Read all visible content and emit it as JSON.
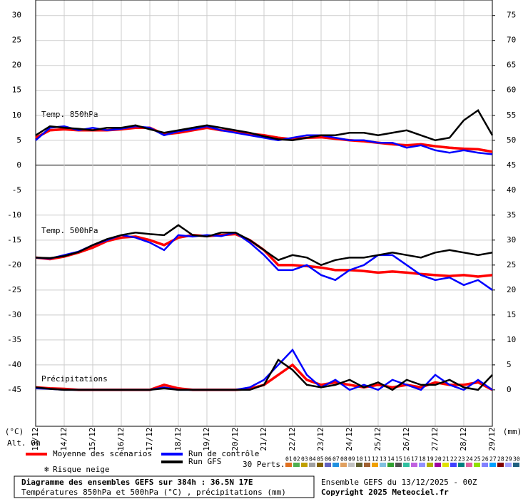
{
  "chart_data": {
    "type": "line",
    "panel_labels": {
      "t850": "Temp. 850hPa",
      "t500": "Temp. 500hPa",
      "precip": "Précipitations"
    },
    "ylabel": "(°C)",
    "y2label": "(mm)",
    "altitude": "Alt. 0m",
    "x": [
      0,
      0.5,
      1,
      1.5,
      2,
      2.5,
      3,
      3.5,
      4,
      4.5,
      5,
      5.5,
      6,
      6.5,
      7,
      7.5,
      8,
      8.5,
      9,
      9.5,
      10,
      10.5,
      11,
      11.5,
      12,
      12.5,
      13,
      13.5,
      14,
      14.5,
      15,
      15.5,
      16
    ],
    "xlim": [
      0,
      16
    ],
    "xticks": [
      {
        "value": 0,
        "label": "13/12"
      },
      {
        "value": 1,
        "label": "14/12"
      },
      {
        "value": 2,
        "label": "15/12"
      },
      {
        "value": 3,
        "label": "16/12"
      },
      {
        "value": 4,
        "label": "17/12"
      },
      {
        "value": 5,
        "label": "18/12"
      },
      {
        "value": 6,
        "label": "19/12"
      },
      {
        "value": 7,
        "label": "20/12"
      },
      {
        "value": 8,
        "label": "21/12"
      },
      {
        "value": 9,
        "label": "22/12"
      },
      {
        "value": 10,
        "label": "23/12"
      },
      {
        "value": 11,
        "label": "24/12"
      },
      {
        "value": 12,
        "label": "25/12"
      },
      {
        "value": 13,
        "label": "26/12"
      },
      {
        "value": 14,
        "label": "27/12"
      },
      {
        "value": 15,
        "label": "28/12"
      },
      {
        "value": 16,
        "label": "29/12"
      }
    ],
    "ylim": [
      -52.3,
      33.1
    ],
    "yticks": [
      30,
      25,
      20,
      15,
      10,
      5,
      0,
      -5,
      -10,
      -15,
      -20,
      -25,
      -30,
      -35,
      -40,
      -45
    ],
    "y2lim": [
      -7.3,
      78.1
    ],
    "y2ticks": [
      75,
      70,
      65,
      60,
      55,
      50,
      45,
      40,
      35,
      30,
      25,
      20,
      15,
      10,
      5,
      0
    ],
    "grid": true,
    "series": [
      {
        "name": "Moyenne des scénarios",
        "color": "#ff0000",
        "t850": [
          5.5,
          7,
          7.2,
          7,
          7,
          7,
          7.2,
          7.5,
          7.5,
          6.2,
          6.5,
          7,
          7.5,
          7,
          6.8,
          6.3,
          6,
          5.5,
          5.2,
          5.5,
          5.6,
          5.3,
          5,
          4.8,
          4.5,
          4.2,
          4,
          4.2,
          3.8,
          3.5,
          3.3,
          3.2,
          2.7
        ],
        "t500": [
          -18.5,
          -18.8,
          -18.3,
          -17.5,
          -16.5,
          -15.2,
          -14.5,
          -14.3,
          -15,
          -16,
          -14.5,
          -14,
          -14.2,
          -14,
          -13.8,
          -15,
          -17,
          -20,
          -20,
          -20.2,
          -20.5,
          -21,
          -21,
          -21.2,
          -21.5,
          -21.3,
          -21.5,
          -21.8,
          -22,
          -22.2,
          -22,
          -22.3,
          -22
        ],
        "precip": [
          0.5,
          0.3,
          0.2,
          0,
          0,
          0,
          0,
          0,
          0,
          1,
          0.3,
          0,
          0,
          0,
          0,
          0.2,
          1,
          3,
          5,
          2,
          1,
          1.5,
          1,
          0.5,
          1,
          0.5,
          1,
          0.5,
          1.5,
          1,
          1,
          1.5,
          0
        ]
      },
      {
        "name": "Run de contrôle",
        "color": "#0000ff",
        "t850": [
          5,
          7.5,
          7.8,
          7,
          7.5,
          7,
          7.3,
          7.8,
          7.5,
          6,
          6.8,
          7.2,
          7.8,
          7,
          6.5,
          6,
          5.5,
          5,
          5.5,
          6,
          6,
          5.5,
          5,
          5,
          4.5,
          4.5,
          3.5,
          4,
          3,
          2.5,
          3,
          2.5,
          2.2
        ],
        "t500": [
          -18.5,
          -18.7,
          -18,
          -17.3,
          -16,
          -15,
          -14,
          -14.5,
          -15.5,
          -17,
          -14,
          -14.3,
          -14,
          -14.2,
          -13.5,
          -15.5,
          -18,
          -21,
          -21,
          -20,
          -22,
          -23,
          -21,
          -20,
          -18,
          -18,
          -20,
          -22,
          -23,
          -22.5,
          -24,
          -23,
          -25
        ],
        "precip": [
          0.3,
          0.2,
          0,
          0,
          0,
          0,
          0,
          0,
          0,
          0.5,
          0,
          0,
          0,
          0,
          0,
          0.5,
          2,
          5,
          8,
          3,
          0.5,
          2,
          0,
          1,
          0,
          2,
          1,
          0,
          3,
          1,
          0,
          2,
          0
        ]
      },
      {
        "name": "Run GFS",
        "color": "#000000",
        "t850": [
          6,
          7.8,
          7.5,
          7.3,
          7,
          7.5,
          7.5,
          8,
          7.2,
          6.5,
          7,
          7.5,
          8,
          7.5,
          7,
          6.5,
          5.8,
          5.2,
          5,
          5.5,
          6,
          6,
          6.5,
          6.5,
          6,
          6.5,
          7,
          6,
          5,
          5.5,
          9,
          11,
          6
        ],
        "t500": [
          -18.5,
          -18.6,
          -18.2,
          -17.4,
          -16,
          -14.8,
          -14,
          -13.5,
          -13.8,
          -14,
          -12,
          -14,
          -14.3,
          -13.5,
          -13.5,
          -15,
          -17,
          -19,
          -18,
          -18.5,
          -20,
          -19,
          -18.5,
          -18.5,
          -18,
          -17.5,
          -18,
          -18.5,
          -17.5,
          -17,
          -17.5,
          -18,
          -17.5
        ],
        "precip": [
          0.5,
          0.2,
          0,
          0,
          0,
          0,
          0,
          0,
          0,
          0.3,
          0,
          0,
          0,
          0,
          0,
          0,
          1,
          6,
          4,
          1,
          0.5,
          1,
          2,
          0.5,
          1.5,
          0,
          2,
          1,
          1,
          2,
          0.5,
          0,
          3
        ]
      }
    ],
    "snow_label": "Risque neige",
    "perts_label": "30 Perts.",
    "perts": [
      {
        "label": "01",
        "color": "#e07020"
      },
      {
        "label": "02",
        "color": "#50b050"
      },
      {
        "label": "03",
        "color": "#c0a000"
      },
      {
        "label": "04",
        "color": "#a0a0a0"
      },
      {
        "label": "05",
        "color": "#806000"
      },
      {
        "label": "06",
        "color": "#6060c0"
      },
      {
        "label": "07",
        "color": "#2090e0"
      },
      {
        "label": "08",
        "color": "#e0a060"
      },
      {
        "label": "09",
        "color": "#c0c0c0"
      },
      {
        "label": "10",
        "color": "#606030"
      },
      {
        "label": "11",
        "color": "#a06030"
      },
      {
        "label": "12",
        "color": "#f0a000"
      },
      {
        "label": "13",
        "color": "#80c0e0"
      },
      {
        "label": "14",
        "color": "#30a030"
      },
      {
        "label": "15",
        "color": "#505050"
      },
      {
        "label": "16",
        "color": "#30c0a0"
      },
      {
        "label": "17",
        "color": "#c060e0"
      },
      {
        "label": "18",
        "color": "#9090ff"
      },
      {
        "label": "19",
        "color": "#b0b000"
      },
      {
        "label": "20",
        "color": "#a000a0"
      },
      {
        "label": "21",
        "color": "#e0e000"
      },
      {
        "label": "22",
        "color": "#4040ff"
      },
      {
        "label": "23",
        "color": "#008080"
      },
      {
        "label": "24",
        "color": "#e060a0"
      },
      {
        "label": "25",
        "color": "#90e000"
      },
      {
        "label": "26",
        "color": "#8080ff"
      },
      {
        "label": "27",
        "color": "#00a0ff"
      },
      {
        "label": "28",
        "color": "#800000"
      },
      {
        "label": "29",
        "color": "#a0a0ff"
      },
      {
        "label": "30",
        "color": "#206080"
      }
    ],
    "footer": {
      "title": "Diagramme des ensembles GEFS sur 384h : 36.5N 17E",
      "subtitle": "Températures 850hPa et 500hPa (°C) , précipitations (mm)",
      "run": "Ensemble GEFS du 13/12/2025 - 00Z",
      "copyright": "Copyright 2025 Meteociel.fr"
    }
  }
}
